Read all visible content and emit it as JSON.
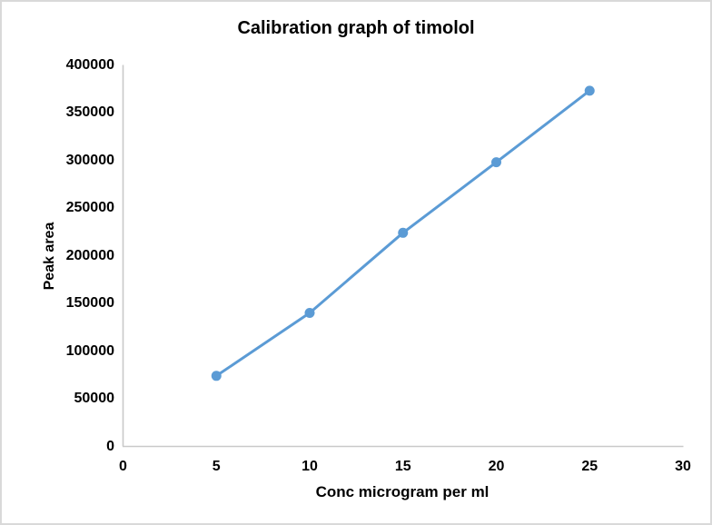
{
  "chart_data": {
    "type": "line",
    "title": "Calibration graph of timolol",
    "xlabel": "Conc microgram per ml",
    "ylabel": "Peak area",
    "series": [
      {
        "name": "timolol",
        "x": [
          5,
          10,
          15,
          20,
          25
        ],
        "y": [
          74000,
          140000,
          224000,
          298000,
          373000
        ]
      }
    ],
    "xlim": [
      0,
      30
    ],
    "ylim": [
      0,
      400000
    ],
    "x_ticks": [
      0,
      5,
      10,
      15,
      20,
      25,
      30
    ],
    "y_ticks": [
      0,
      50000,
      100000,
      150000,
      200000,
      250000,
      300000,
      350000,
      400000
    ],
    "grid": false,
    "legend": false,
    "marker": "circle",
    "line_color": "#5b9bd5",
    "marker_color": "#5b9bd5",
    "axis_color": "#c9c9c9",
    "text_color": "#000000"
  }
}
